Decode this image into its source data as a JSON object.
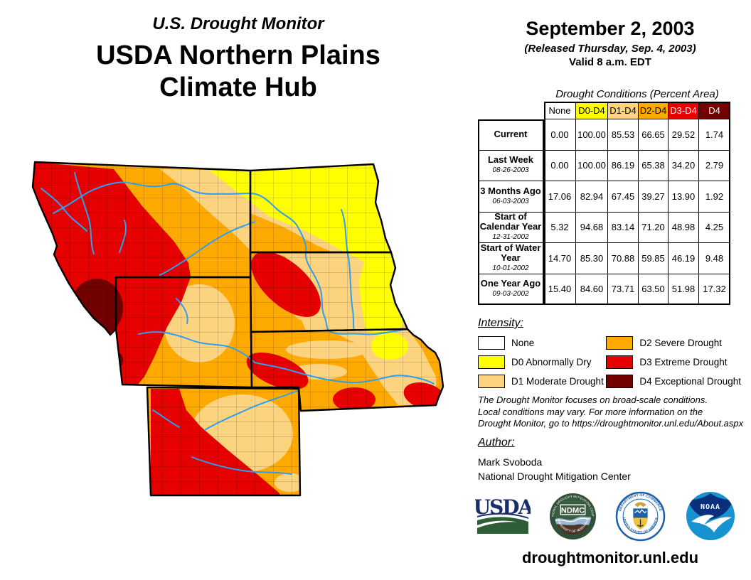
{
  "header": {
    "kicker": "U.S. Drought Monitor",
    "title_line1": "USDA Northern Plains",
    "title_line2": "Climate Hub"
  },
  "date_block": {
    "date": "September 2, 2003",
    "released": "(Released Thursday, Sep. 4, 2003)",
    "valid": "Valid 8 a.m. EDT"
  },
  "table": {
    "caption": "Drought Conditions (Percent Area)",
    "columns": [
      "None",
      "D0-D4",
      "D1-D4",
      "D2-D4",
      "D3-D4",
      "D4"
    ],
    "column_styles": [
      {
        "bg": "#FFFFFF",
        "fg": "#000000"
      },
      {
        "bg": "#FFFF00",
        "fg": "#000000"
      },
      {
        "bg": "#FCD37F",
        "fg": "#000000"
      },
      {
        "bg": "#FFAA00",
        "fg": "#000000"
      },
      {
        "bg": "#E60000",
        "fg": "#FFFFFF"
      },
      {
        "bg": "#730000",
        "fg": "#FFFFFF"
      }
    ],
    "rows": [
      {
        "label": "Current",
        "date": "",
        "values": [
          "0.00",
          "100.00",
          "85.53",
          "66.65",
          "29.52",
          "1.74"
        ]
      },
      {
        "label": "Last Week",
        "date": "08-26-2003",
        "values": [
          "0.00",
          "100.00",
          "86.19",
          "65.38",
          "34.20",
          "2.79"
        ]
      },
      {
        "label": "3 Months Ago",
        "date": "06-03-2003",
        "values": [
          "17.06",
          "82.94",
          "67.45",
          "39.27",
          "13.90",
          "1.92"
        ]
      },
      {
        "label": "Start of Calendar Year",
        "date": "12-31-2002",
        "values": [
          "5.32",
          "94.68",
          "83.14",
          "71.20",
          "48.98",
          "4.25"
        ]
      },
      {
        "label": "Start of Water Year",
        "date": "10-01-2002",
        "values": [
          "14.70",
          "85.30",
          "70.88",
          "59.85",
          "46.19",
          "9.48"
        ]
      },
      {
        "label": "One Year Ago",
        "date": "09-03-2002",
        "values": [
          "15.40",
          "84.60",
          "73.71",
          "63.50",
          "51.98",
          "17.32"
        ]
      }
    ]
  },
  "legend": {
    "title": "Intensity:",
    "items": [
      {
        "label": "None",
        "color": "#FFFFFF"
      },
      {
        "label": "D0 Abnormally Dry",
        "color": "#FFFF00"
      },
      {
        "label": "D1 Moderate Drought",
        "color": "#FCD37F"
      },
      {
        "label": "D2 Severe Drought",
        "color": "#FFAA00"
      },
      {
        "label": "D3 Extreme Drought",
        "color": "#E60000"
      },
      {
        "label": "D4 Exceptional Drought",
        "color": "#730000"
      }
    ]
  },
  "disclaimer": {
    "lines": [
      "The Drought Monitor focuses on broad-scale conditions.",
      "Local conditions may vary. For more information on the",
      "Drought Monitor, go to https://droughtmonitor.unl.edu/About.aspx"
    ]
  },
  "author": {
    "title": "Author:",
    "name": "Mark Svoboda",
    "org": "National Drought Mitigation Center"
  },
  "logos": [
    {
      "name": "USDA"
    },
    {
      "name": "NDMC"
    },
    {
      "name": "Department of Commerce"
    },
    {
      "name": "NOAA"
    }
  ],
  "footer": {
    "url": "droughtmonitor.unl.edu"
  },
  "map": {
    "region": "USDA Northern Plains Climate Hub",
    "states": [
      "Montana",
      "North Dakota",
      "South Dakota",
      "Wyoming",
      "Nebraska",
      "Colorado"
    ],
    "colors": {
      "d0": "#FFFF00",
      "d1": "#FCD37F",
      "d2": "#FFAA00",
      "d3": "#E60000",
      "d4": "#730000",
      "river": "#2F9EF0",
      "mapborder": "#000000"
    },
    "logo_colors": {
      "usda_navy": "#1B2D6B",
      "usda_green": "#2D5E35",
      "ndmc_green": "#2F4F36",
      "ndmc_blue": "#9DB8D2",
      "ndmc_brown": "#4C3426",
      "doc_blue": "#1D62A6",
      "doc_gold": "#F0C23F",
      "noaa_blue": "#1793D0",
      "noaa_navy": "#0A2F7C"
    }
  }
}
